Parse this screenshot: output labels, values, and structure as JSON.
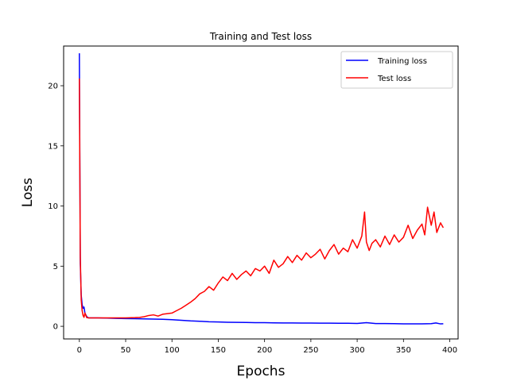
{
  "chart_data": {
    "type": "line",
    "title": "Training and Test loss",
    "xlabel": "Epochs",
    "ylabel": "Loss",
    "xlim": [
      -17,
      409
    ],
    "ylim": [
      -1.05,
      23.3
    ],
    "xticks": [
      0,
      50,
      100,
      150,
      200,
      250,
      300,
      350,
      400
    ],
    "yticks": [
      0,
      5,
      10,
      15,
      20
    ],
    "grid": false,
    "legend_position": "top-right",
    "series": [
      {
        "name": "Training loss",
        "color": "#0000ff",
        "x": [
          0,
          1,
          2,
          3,
          4,
          5,
          6,
          8,
          10,
          15,
          20,
          30,
          40,
          50,
          60,
          70,
          80,
          90,
          100,
          110,
          120,
          130,
          140,
          150,
          160,
          170,
          180,
          190,
          200,
          210,
          220,
          230,
          240,
          250,
          260,
          270,
          280,
          290,
          300,
          310,
          320,
          330,
          340,
          350,
          360,
          370,
          380,
          385,
          390,
          393
        ],
        "y": [
          22.7,
          5.2,
          2.6,
          1.8,
          1.5,
          1.6,
          1.1,
          0.8,
          0.7,
          0.7,
          0.7,
          0.68,
          0.66,
          0.64,
          0.63,
          0.62,
          0.6,
          0.58,
          0.55,
          0.5,
          0.45,
          0.42,
          0.38,
          0.36,
          0.34,
          0.33,
          0.32,
          0.3,
          0.3,
          0.29,
          0.28,
          0.28,
          0.27,
          0.27,
          0.26,
          0.26,
          0.25,
          0.25,
          0.24,
          0.3,
          0.23,
          0.23,
          0.22,
          0.2,
          0.2,
          0.2,
          0.22,
          0.28,
          0.2,
          0.21
        ]
      },
      {
        "name": "Test loss",
        "color": "#ff0000",
        "x": [
          0,
          1,
          2,
          3,
          4,
          5,
          6,
          8,
          10,
          15,
          20,
          30,
          40,
          50,
          60,
          65,
          70,
          75,
          80,
          85,
          90,
          95,
          100,
          105,
          110,
          115,
          120,
          125,
          130,
          135,
          140,
          145,
          150,
          155,
          160,
          165,
          170,
          175,
          180,
          185,
          190,
          195,
          200,
          205,
          210,
          215,
          220,
          225,
          230,
          235,
          240,
          245,
          250,
          255,
          260,
          265,
          270,
          275,
          280,
          285,
          290,
          295,
          300,
          305,
          308,
          310,
          313,
          316,
          320,
          325,
          330,
          335,
          340,
          345,
          350,
          355,
          360,
          365,
          370,
          373,
          376,
          380,
          383,
          386,
          390,
          393
        ],
        "y": [
          20.6,
          5.8,
          2.2,
          1.3,
          0.9,
          0.75,
          1.1,
          0.72,
          0.7,
          0.7,
          0.7,
          0.7,
          0.7,
          0.7,
          0.72,
          0.74,
          0.8,
          0.9,
          0.95,
          0.85,
          1.0,
          1.05,
          1.1,
          1.3,
          1.5,
          1.75,
          2.0,
          2.3,
          2.7,
          2.9,
          3.3,
          3.0,
          3.6,
          4.1,
          3.8,
          4.4,
          3.9,
          4.3,
          4.6,
          4.2,
          4.8,
          4.6,
          5.0,
          4.4,
          5.5,
          4.9,
          5.2,
          5.8,
          5.3,
          5.9,
          5.5,
          6.1,
          5.7,
          6.0,
          6.4,
          5.6,
          6.3,
          6.8,
          6.0,
          6.5,
          6.2,
          7.2,
          6.5,
          7.5,
          9.5,
          7.0,
          6.3,
          6.9,
          7.2,
          6.6,
          7.5,
          6.8,
          7.6,
          7.0,
          7.4,
          8.4,
          7.3,
          8.0,
          8.5,
          7.6,
          9.9,
          8.4,
          9.5,
          7.8,
          8.6,
          8.2
        ]
      }
    ]
  }
}
